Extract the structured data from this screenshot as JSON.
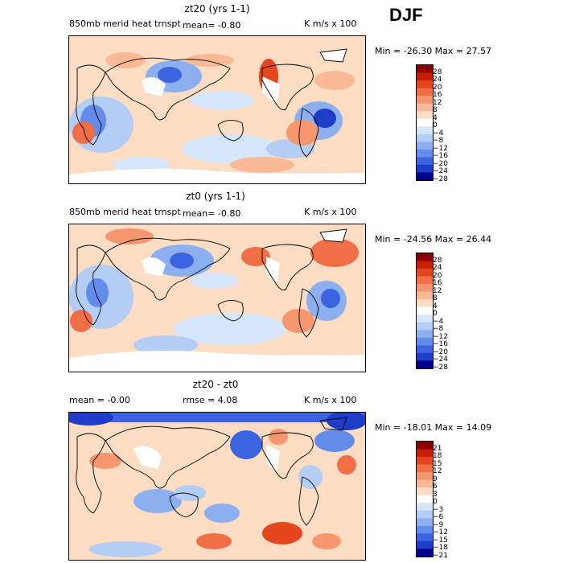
{
  "season": "DJF",
  "units": "K m/s x 100",
  "chart_data": [
    {
      "type": "heatmap",
      "title": "zt20 (yrs 1-1)",
      "subtitle": "850mb merid heat trnspt",
      "mean_text": "mean=   -0.80",
      "units": "K m/s x 100",
      "min_max_text": "Min = -26.30 Max =   27.57",
      "min": -26.3,
      "max": 27.57,
      "mean": -0.8,
      "colorbar_levels": [
        "28",
        "24",
        "20",
        "16",
        "12",
        "8",
        "4",
        "0",
        "−4",
        "−8",
        "−12",
        "−16",
        "−20",
        "−24",
        "−28"
      ]
    },
    {
      "type": "heatmap",
      "title": "zt0 (yrs 1-1)",
      "subtitle": "850mb merid heat trnspt",
      "mean_text": "mean=   -0.80",
      "units": "K m/s x 100",
      "min_max_text": "Min = -24.56 Max =   26.44",
      "min": -24.56,
      "max": 26.44,
      "mean": -0.8,
      "colorbar_levels": [
        "28",
        "24",
        "20",
        "16",
        "12",
        "8",
        "4",
        "0",
        "−4",
        "−8",
        "−12",
        "−16",
        "−20",
        "−24",
        "−28"
      ]
    },
    {
      "type": "heatmap",
      "title": "zt20 - zt0",
      "mean_text": "mean =   -0.00",
      "rmse_text": "rmse =    4.08",
      "units": "K m/s x 100",
      "min_max_text": "Min = -18.01 Max =   14.09",
      "min": -18.01,
      "max": 14.09,
      "mean": -0.0,
      "rmse": 4.08,
      "colorbar_levels": [
        "21",
        "18",
        "15",
        "12",
        "9",
        "6",
        "3",
        "0",
        "−3",
        "−6",
        "−9",
        "−12",
        "−15",
        "−18",
        "−21"
      ]
    }
  ],
  "colors": {
    "land_white": "#ffffff",
    "scale": [
      "#8b0000",
      "#c81e00",
      "#e6461e",
      "#f06e46",
      "#f5966e",
      "#f9b996",
      "#fcdcc3",
      "#ffffff",
      "#d6e6fa",
      "#b4cdf5",
      "#8caff0",
      "#648ceb",
      "#3c64e1",
      "#1e3cc8",
      "#00008b"
    ]
  }
}
